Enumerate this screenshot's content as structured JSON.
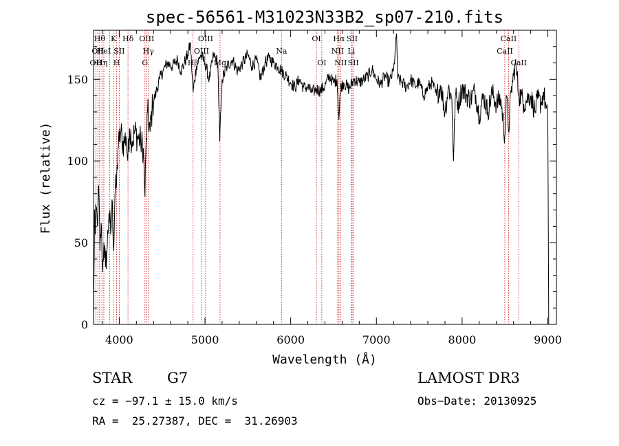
{
  "chart_data": {
    "type": "line",
    "title": "spec-56561-M31023N33B2_sp07-210.fits",
    "xlabel": "Wavelength (Å)",
    "ylabel": "Flux (relative)",
    "xlim": [
      3700,
      9100
    ],
    "ylim": [
      0,
      180
    ],
    "x_ticks": [
      4000,
      5000,
      6000,
      7000,
      8000,
      9000
    ],
    "y_ticks": [
      0,
      50,
      100,
      150
    ],
    "grid": false,
    "series": [
      {
        "points": [
          [
            3700,
            0
          ],
          [
            3705,
            30
          ],
          [
            3712,
            70
          ],
          [
            3720,
            55
          ],
          [
            3730,
            72
          ],
          [
            3745,
            60
          ],
          [
            3760,
            85
          ],
          [
            3775,
            45
          ],
          [
            3790,
            62
          ],
          [
            3805,
            32
          ],
          [
            3820,
            50
          ],
          [
            3840,
            35
          ],
          [
            3860,
            48
          ],
          [
            3880,
            68
          ],
          [
            3900,
            55
          ],
          [
            3920,
            75
          ],
          [
            3935,
            45
          ],
          [
            3950,
            80
          ],
          [
            3968,
            85
          ],
          [
            3985,
            108
          ],
          [
            4000,
            112
          ],
          [
            4020,
            118
          ],
          [
            4040,
            110
          ],
          [
            4060,
            112
          ],
          [
            4080,
            115
          ],
          [
            4100,
            100
          ],
          [
            4120,
            120
          ],
          [
            4150,
            112
          ],
          [
            4180,
            118
          ],
          [
            4210,
            115
          ],
          [
            4250,
            112
          ],
          [
            4280,
            108
          ],
          [
            4300,
            78
          ],
          [
            4310,
            104
          ],
          [
            4330,
            130
          ],
          [
            4360,
            118
          ],
          [
            4390,
            135
          ],
          [
            4430,
            142
          ],
          [
            4470,
            150
          ],
          [
            4510,
            155
          ],
          [
            4560,
            160
          ],
          [
            4620,
            158
          ],
          [
            4680,
            162
          ],
          [
            4720,
            155
          ],
          [
            4760,
            160
          ],
          [
            4800,
            165
          ],
          [
            4830,
            172
          ],
          [
            4861,
            142
          ],
          [
            4900,
            158
          ],
          [
            4950,
            165
          ],
          [
            5000,
            160
          ],
          [
            5050,
            150
          ],
          [
            5100,
            165
          ],
          [
            5150,
            160
          ],
          [
            5172,
            112
          ],
          [
            5200,
            150
          ],
          [
            5260,
            158
          ],
          [
            5320,
            162
          ],
          [
            5380,
            155
          ],
          [
            5440,
            160
          ],
          [
            5500,
            165
          ],
          [
            5550,
            158
          ],
          [
            5600,
            162
          ],
          [
            5650,
            150
          ],
          [
            5700,
            160
          ],
          [
            5750,
            163
          ],
          [
            5800,
            160
          ],
          [
            5850,
            158
          ],
          [
            5893,
            155
          ],
          [
            5950,
            152
          ],
          [
            6000,
            148
          ],
          [
            6050,
            145
          ],
          [
            6100,
            150
          ],
          [
            6150,
            145
          ],
          [
            6200,
            145
          ],
          [
            6250,
            142
          ],
          [
            6300,
            144
          ],
          [
            6350,
            143
          ],
          [
            6400,
            146
          ],
          [
            6450,
            152
          ],
          [
            6500,
            148
          ],
          [
            6540,
            150
          ],
          [
            6563,
            125
          ],
          [
            6580,
            145
          ],
          [
            6620,
            148
          ],
          [
            6680,
            144
          ],
          [
            6740,
            150
          ],
          [
            6800,
            148
          ],
          [
            6860,
            150
          ],
          [
            6900,
            152
          ],
          [
            6950,
            156
          ],
          [
            7000,
            150
          ],
          [
            7050,
            147
          ],
          [
            7100,
            152
          ],
          [
            7150,
            148
          ],
          [
            7200,
            155
          ],
          [
            7235,
            178
          ],
          [
            7250,
            150
          ],
          [
            7300,
            148
          ],
          [
            7350,
            145
          ],
          [
            7400,
            150
          ],
          [
            7450,
            146
          ],
          [
            7500,
            148
          ],
          [
            7550,
            140
          ],
          [
            7600,
            145
          ],
          [
            7650,
            148
          ],
          [
            7700,
            140
          ],
          [
            7750,
            146
          ],
          [
            7800,
            130
          ],
          [
            7840,
            145
          ],
          [
            7880,
            138
          ],
          [
            7900,
            100
          ],
          [
            7920,
            140
          ],
          [
            7960,
            135
          ],
          [
            8000,
            145
          ],
          [
            8050,
            140
          ],
          [
            8100,
            138
          ],
          [
            8150,
            143
          ],
          [
            8200,
            128
          ],
          [
            8250,
            140
          ],
          [
            8300,
            130
          ],
          [
            8350,
            142
          ],
          [
            8400,
            135
          ],
          [
            8450,
            138
          ],
          [
            8498,
            115
          ],
          [
            8520,
            140
          ],
          [
            8542,
            118
          ],
          [
            8570,
            142
          ],
          [
            8600,
            152
          ],
          [
            8620,
            160
          ],
          [
            8640,
            152
          ],
          [
            8662,
            140
          ],
          [
            8690,
            140
          ],
          [
            8720,
            135
          ],
          [
            8760,
            138
          ],
          [
            8800,
            140
          ],
          [
            8850,
            130
          ],
          [
            8880,
            138
          ],
          [
            8920,
            135
          ],
          [
            8950,
            142
          ],
          [
            8980,
            132
          ],
          [
            9000,
            125
          ],
          [
            9010,
            0
          ]
        ]
      }
    ],
    "line_markers": [
      {
        "wave": 3727,
        "label": "OII",
        "row": 2
      },
      {
        "wave": 3750,
        "label": "OII",
        "row": 1
      },
      {
        "wave": 3771,
        "label": "Hθ",
        "row": 0
      },
      {
        "wave": 3798,
        "label": "Hη",
        "row": 2
      },
      {
        "wave": 3820,
        "label": "HeI",
        "row": 1
      },
      {
        "wave": 3889,
        "label": "",
        "row": 0
      },
      {
        "wave": 3934,
        "label": "K",
        "row": 0
      },
      {
        "wave": 3969,
        "label": "H",
        "row": 2
      },
      {
        "wave": 4000,
        "label": "SII",
        "row": 1
      },
      {
        "wave": 4102,
        "label": "Hδ",
        "row": 0
      },
      {
        "wave": 4300,
        "label": "G",
        "row": 2
      },
      {
        "wave": 4320,
        "label": "OIII",
        "row": 0
      },
      {
        "wave": 4340,
        "label": "Hγ",
        "row": 1
      },
      {
        "wave": 4861,
        "label": "Hβ",
        "row": 2
      },
      {
        "wave": 4959,
        "label": "OIII",
        "row": 1
      },
      {
        "wave": 5007,
        "label": "OIII",
        "row": 0
      },
      {
        "wave": 5176,
        "label": "Mg",
        "row": 2
      },
      {
        "wave": 5893,
        "label": "Na",
        "row": 1
      },
      {
        "wave": 6300,
        "label": "OI",
        "row": 0
      },
      {
        "wave": 6363,
        "label": "OI",
        "row": 2
      },
      {
        "wave": 6548,
        "label": "NII",
        "row": 1
      },
      {
        "wave": 6563,
        "label": "Hα",
        "row": 0
      },
      {
        "wave": 6583,
        "label": "NII",
        "row": 2
      },
      {
        "wave": 6708,
        "label": "Li",
        "row": 1
      },
      {
        "wave": 6717,
        "label": "SII",
        "row": 0
      },
      {
        "wave": 6731,
        "label": "SII",
        "row": 2
      },
      {
        "wave": 8498,
        "label": "CaII",
        "row": 1
      },
      {
        "wave": 8542,
        "label": "CaII",
        "row": 0
      },
      {
        "wave": 8662,
        "label": "CaII",
        "row": 2
      }
    ]
  },
  "info": {
    "class": "STAR",
    "subclass": "G7",
    "survey": "LAMOST DR3",
    "cz": "cz = −97.1 ± 15.0 km/s",
    "obs_date": "Obs−Date: 20130925",
    "coords": "RA =  25.27387, DEC =  31.26903"
  },
  "colors": {
    "spectrum": "#000000",
    "marker": "#cc0000"
  }
}
